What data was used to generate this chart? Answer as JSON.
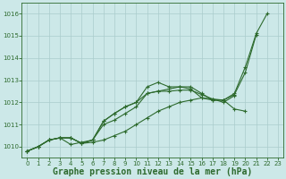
{
  "x": [
    0,
    1,
    2,
    3,
    4,
    5,
    6,
    7,
    8,
    9,
    10,
    11,
    12,
    13,
    14,
    15,
    16,
    17,
    18,
    19,
    20,
    21,
    22,
    23
  ],
  "line1": [
    1009.8,
    1010.0,
    1010.3,
    1010.4,
    1010.4,
    1010.15,
    1010.3,
    1011.15,
    1011.5,
    1011.8,
    1012.0,
    1012.7,
    1012.9,
    1012.7,
    1012.7,
    1012.7,
    1012.4,
    1012.1,
    1012.1,
    1012.4,
    1013.6,
    1015.1,
    1016.0,
    null
  ],
  "line2": [
    1009.8,
    1010.0,
    1010.3,
    1010.4,
    1010.4,
    1010.15,
    1010.2,
    1010.3,
    1010.5,
    1010.7,
    1011.0,
    1011.3,
    1011.6,
    1011.8,
    1012.0,
    1012.1,
    1012.2,
    1012.15,
    1012.1,
    1011.7,
    1011.6,
    null,
    null,
    null
  ],
  "line3": [
    1009.8,
    1010.0,
    1010.3,
    1010.4,
    1010.1,
    1010.2,
    1010.3,
    1011.0,
    1011.2,
    1011.5,
    1011.8,
    1012.4,
    1012.5,
    1012.5,
    1012.55,
    1012.55,
    1012.35,
    1012.15,
    1012.0,
    1012.3,
    null,
    null,
    null,
    null
  ],
  "line4": [
    1009.8,
    1010.0,
    1010.3,
    1010.4,
    1010.4,
    1010.15,
    1010.3,
    1011.15,
    1011.5,
    1011.8,
    1012.0,
    1012.4,
    1012.5,
    1012.6,
    1012.7,
    1012.6,
    1012.2,
    1012.1,
    1012.1,
    1012.35,
    1013.35,
    1015.05,
    null,
    null
  ],
  "line_color": "#2d6a2d",
  "bg_color": "#cce8e8",
  "grid_color": "#aacccc",
  "ylim": [
    1009.5,
    1016.5
  ],
  "xlim": [
    -0.5,
    23.5
  ],
  "yticks": [
    1010,
    1011,
    1012,
    1013,
    1014,
    1015,
    1016
  ],
  "xticks": [
    0,
    1,
    2,
    3,
    4,
    5,
    6,
    7,
    8,
    9,
    10,
    11,
    12,
    13,
    14,
    15,
    16,
    17,
    18,
    19,
    20,
    21,
    22,
    23
  ],
  "xlabel": "Graphe pression niveau de la mer (hPa)",
  "xlabel_fontsize": 7,
  "marker": "+",
  "markersize": 3,
  "linewidth": 0.8,
  "tick_fontsize": 5,
  "ytick_fontsize": 5
}
